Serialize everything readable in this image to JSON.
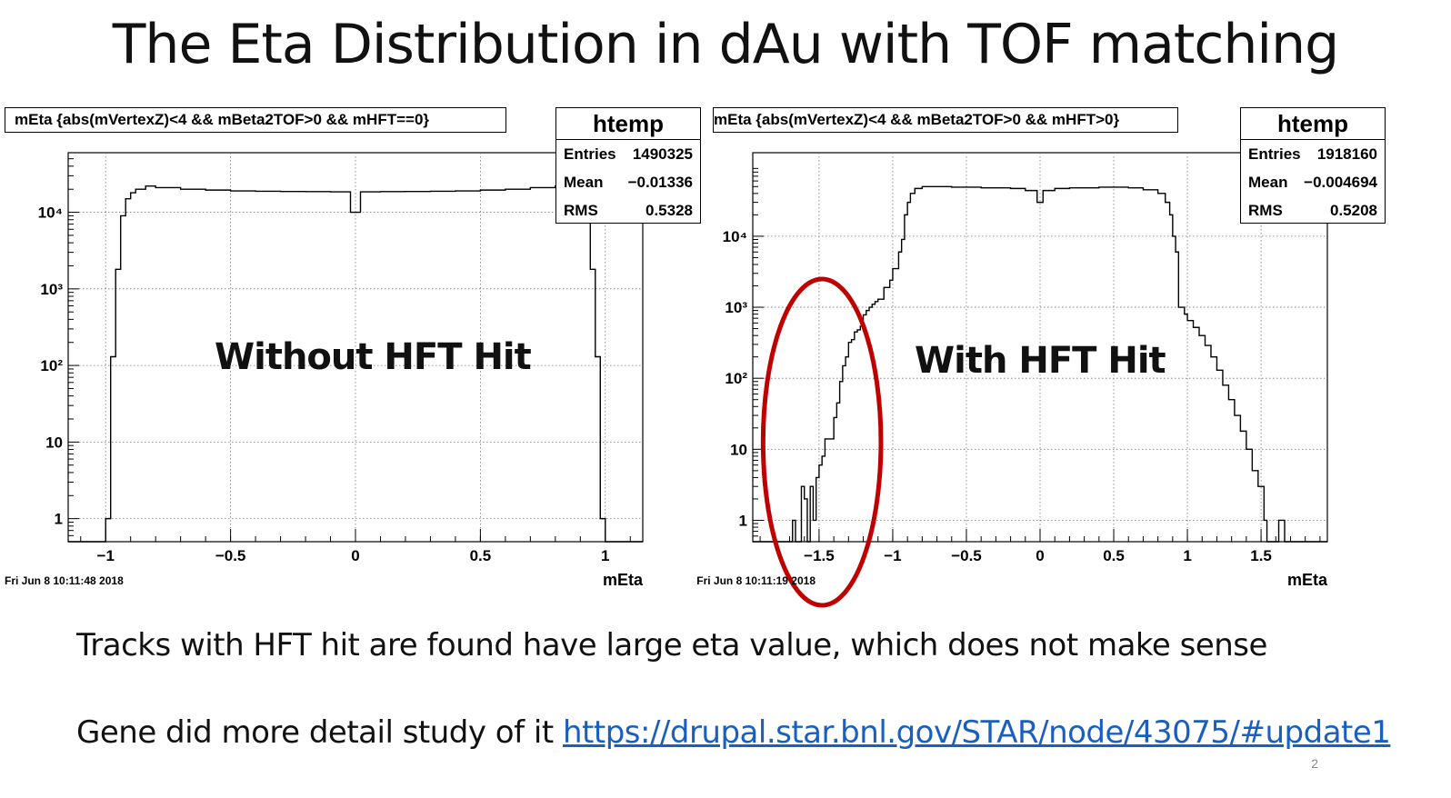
{
  "slide": {
    "title": "The Eta Distribution in dAu with TOF matching",
    "line1": "Tracks with HFT hit are found have large eta value, which does not make sense",
    "line2_prefix": "Gene did more detail study of it ",
    "line2_link": " https://drupal.star.bnl.gov/STAR/node/43075/#update1",
    "page_number": "2"
  },
  "colors": {
    "link": "#1a5fc0",
    "circle": "#c00000",
    "hist": "#000000"
  },
  "chart_data": [
    {
      "type": "histogram",
      "title": "mEta {abs(mVertexZ)<4 && mBeta2TOF>0 && mHFT==0}",
      "annotation": "Without HFT Hit",
      "xlabel": "mEta",
      "ylabel": "",
      "xlim": [
        -1.15,
        1.15
      ],
      "ylim": [
        0.5,
        60000
      ],
      "log_y": true,
      "grid": true,
      "x_ticks": [
        {
          "v": -1,
          "label": "−1"
        },
        {
          "v": -0.5,
          "label": "−0.5"
        },
        {
          "v": 0,
          "label": "0"
        },
        {
          "v": 0.5,
          "label": "0.5"
        },
        {
          "v": 1,
          "label": "1"
        }
      ],
      "y_ticks": [
        {
          "v": 1,
          "label": "1"
        },
        {
          "v": 10,
          "label": "10"
        },
        {
          "v": 100,
          "label": "10²"
        },
        {
          "v": 1000,
          "label": "10³"
        },
        {
          "v": 10000,
          "label": "10⁴"
        }
      ],
      "stats": {
        "name": "htemp",
        "entries": "1490325",
        "mean": "−0.01336",
        "rms": "0.5328"
      },
      "timestamp": "Fri Jun  8 10:11:48 2018",
      "bins": [
        [
          -1.15,
          -1.0,
          0
        ],
        [
          -1.0,
          -0.98,
          1
        ],
        [
          -0.98,
          -0.96,
          130
        ],
        [
          -0.96,
          -0.94,
          1800
        ],
        [
          -0.94,
          -0.92,
          9000
        ],
        [
          -0.92,
          -0.9,
          15000
        ],
        [
          -0.9,
          -0.88,
          18000
        ],
        [
          -0.88,
          -0.84,
          20000
        ],
        [
          -0.84,
          -0.8,
          22000
        ],
        [
          -0.8,
          -0.7,
          21000
        ],
        [
          -0.7,
          -0.6,
          20000
        ],
        [
          -0.6,
          -0.5,
          19500
        ],
        [
          -0.5,
          -0.4,
          19000
        ],
        [
          -0.4,
          -0.3,
          18800
        ],
        [
          -0.3,
          -0.2,
          18700
        ],
        [
          -0.2,
          -0.1,
          18600
        ],
        [
          -0.1,
          -0.02,
          18500
        ],
        [
          -0.02,
          0.02,
          10000
        ],
        [
          0.02,
          0.1,
          18500
        ],
        [
          0.1,
          0.2,
          18600
        ],
        [
          0.2,
          0.3,
          18700
        ],
        [
          0.3,
          0.4,
          18800
        ],
        [
          0.4,
          0.5,
          19000
        ],
        [
          0.5,
          0.6,
          19500
        ],
        [
          0.6,
          0.7,
          20000
        ],
        [
          0.7,
          0.8,
          21000
        ],
        [
          0.8,
          0.84,
          22000
        ],
        [
          0.84,
          0.88,
          20000
        ],
        [
          0.88,
          0.9,
          18000
        ],
        [
          0.9,
          0.92,
          15000
        ],
        [
          0.92,
          0.94,
          9000
        ],
        [
          0.94,
          0.96,
          1800
        ],
        [
          0.96,
          0.98,
          130
        ],
        [
          0.98,
          1.0,
          1
        ],
        [
          1.0,
          1.15,
          0
        ]
      ]
    },
    {
      "type": "histogram",
      "title": "mEta {abs(mVertexZ)<4 && mBeta2TOF>0 && mHFT>0}",
      "annotation": "With HFT Hit",
      "xlabel": "mEta",
      "ylabel": "",
      "xlim": [
        -1.95,
        1.95
      ],
      "ylim": [
        0.5,
        150000
      ],
      "log_y": true,
      "grid": true,
      "x_ticks": [
        {
          "v": -1.5,
          "label": "−1.5"
        },
        {
          "v": -1,
          "label": "−1"
        },
        {
          "v": -0.5,
          "label": "−0.5"
        },
        {
          "v": 0,
          "label": "0"
        },
        {
          "v": 0.5,
          "label": "0.5"
        },
        {
          "v": 1,
          "label": "1"
        },
        {
          "v": 1.5,
          "label": "1.5"
        }
      ],
      "y_ticks": [
        {
          "v": 1,
          "label": "1"
        },
        {
          "v": 10,
          "label": "10"
        },
        {
          "v": 100,
          "label": "10²"
        },
        {
          "v": 1000,
          "label": "10³"
        },
        {
          "v": 10000,
          "label": "10⁴"
        }
      ],
      "stats": {
        "name": "htemp",
        "entries": "1918160",
        "mean": "−0.004694",
        "rms": "0.5208"
      },
      "timestamp": "Fri Jun  8 10:11:19 2018",
      "highlight": {
        "x_center": -1.48,
        "x_halfwidth": 0.4,
        "y_low": 0.2,
        "y_high": 2500
      },
      "bins": [
        [
          -1.95,
          -1.68,
          0
        ],
        [
          -1.68,
          -1.66,
          1
        ],
        [
          -1.66,
          -1.62,
          0
        ],
        [
          -1.62,
          -1.6,
          3
        ],
        [
          -1.6,
          -1.58,
          2
        ],
        [
          -1.58,
          -1.56,
          0
        ],
        [
          -1.56,
          -1.54,
          3
        ],
        [
          -1.54,
          -1.52,
          1
        ],
        [
          -1.52,
          -1.5,
          4
        ],
        [
          -1.5,
          -1.48,
          6
        ],
        [
          -1.48,
          -1.46,
          8
        ],
        [
          -1.46,
          -1.44,
          14
        ],
        [
          -1.44,
          -1.4,
          14
        ],
        [
          -1.4,
          -1.38,
          28
        ],
        [
          -1.38,
          -1.36,
          45
        ],
        [
          -1.36,
          -1.34,
          90
        ],
        [
          -1.34,
          -1.32,
          150
        ],
        [
          -1.32,
          -1.3,
          200
        ],
        [
          -1.3,
          -1.28,
          320
        ],
        [
          -1.28,
          -1.26,
          350
        ],
        [
          -1.26,
          -1.24,
          450
        ],
        [
          -1.24,
          -1.22,
          480
        ],
        [
          -1.22,
          -1.2,
          540
        ],
        [
          -1.2,
          -1.18,
          780
        ],
        [
          -1.18,
          -1.16,
          900
        ],
        [
          -1.16,
          -1.14,
          1000
        ],
        [
          -1.14,
          -1.12,
          1100
        ],
        [
          -1.12,
          -1.1,
          1200
        ],
        [
          -1.1,
          -1.06,
          1300
        ],
        [
          -1.06,
          -1.02,
          1900
        ],
        [
          -1.02,
          -1.0,
          2400
        ],
        [
          -1.0,
          -0.96,
          3500
        ],
        [
          -0.96,
          -0.94,
          6000
        ],
        [
          -0.94,
          -0.92,
          9000
        ],
        [
          -0.92,
          -0.9,
          20000
        ],
        [
          -0.9,
          -0.88,
          30000
        ],
        [
          -0.88,
          -0.85,
          40000
        ],
        [
          -0.85,
          -0.8,
          47000
        ],
        [
          -0.8,
          -0.7,
          50000
        ],
        [
          -0.7,
          -0.6,
          50000
        ],
        [
          -0.6,
          -0.5,
          49000
        ],
        [
          -0.5,
          -0.4,
          49000
        ],
        [
          -0.4,
          -0.3,
          48000
        ],
        [
          -0.3,
          -0.2,
          48000
        ],
        [
          -0.2,
          -0.1,
          47000
        ],
        [
          -0.1,
          -0.02,
          44000
        ],
        [
          -0.02,
          0.02,
          30000
        ],
        [
          0.02,
          0.1,
          44000
        ],
        [
          0.1,
          0.2,
          47000
        ],
        [
          0.2,
          0.3,
          48000
        ],
        [
          0.3,
          0.4,
          48000
        ],
        [
          0.4,
          0.5,
          49000
        ],
        [
          0.5,
          0.6,
          49000
        ],
        [
          0.6,
          0.7,
          48000
        ],
        [
          0.7,
          0.8,
          45000
        ],
        [
          0.8,
          0.85,
          40000
        ],
        [
          0.85,
          0.88,
          30000
        ],
        [
          0.88,
          0.9,
          20000
        ],
        [
          0.9,
          0.92,
          10000
        ],
        [
          0.92,
          0.94,
          6000
        ],
        [
          0.94,
          0.98,
          1000
        ],
        [
          0.98,
          1.0,
          800
        ],
        [
          1.0,
          1.04,
          650
        ],
        [
          1.04,
          1.08,
          520
        ],
        [
          1.08,
          1.12,
          400
        ],
        [
          1.12,
          1.16,
          290
        ],
        [
          1.16,
          1.2,
          200
        ],
        [
          1.2,
          1.24,
          130
        ],
        [
          1.24,
          1.28,
          80
        ],
        [
          1.28,
          1.32,
          50
        ],
        [
          1.32,
          1.36,
          30
        ],
        [
          1.36,
          1.4,
          18
        ],
        [
          1.4,
          1.44,
          10
        ],
        [
          1.44,
          1.48,
          5
        ],
        [
          1.48,
          1.52,
          3
        ],
        [
          1.52,
          1.54,
          1
        ],
        [
          1.54,
          1.62,
          0
        ],
        [
          1.62,
          1.64,
          1
        ],
        [
          1.64,
          1.66,
          1
        ],
        [
          1.66,
          1.95,
          0
        ]
      ]
    }
  ]
}
